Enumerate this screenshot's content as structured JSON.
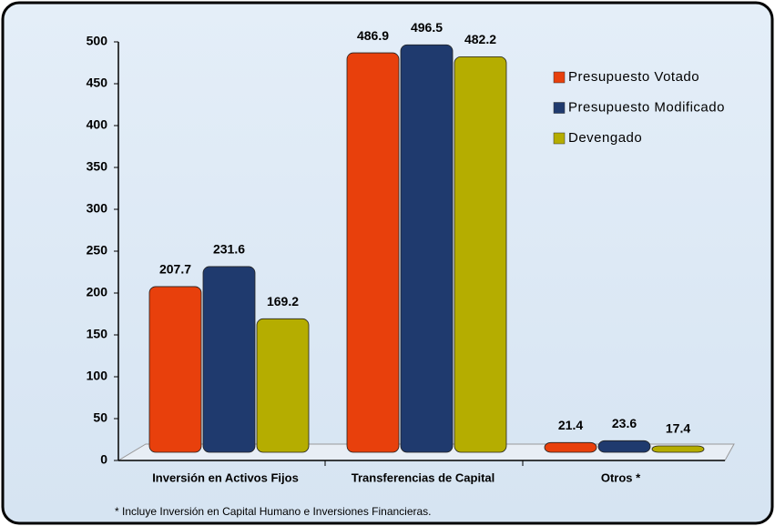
{
  "chart_data": {
    "type": "bar",
    "categories": [
      "Inversión en Activos Fijos",
      "Transferencias de Capital",
      "Otros *"
    ],
    "series": [
      {
        "name": "Presupuesto Votado",
        "color": "#e8400c",
        "values": [
          207.7,
          486.9,
          21.4
        ]
      },
      {
        "name": "Presupuesto Modificado",
        "color": "#1f3a6e",
        "values": [
          231.6,
          496.5,
          23.6
        ]
      },
      {
        "name": "Devengado",
        "color": "#b5ad00",
        "values": [
          169.2,
          482.2,
          17.4
        ]
      }
    ],
    "ylim": [
      0,
      500
    ],
    "yticks": [
      0,
      50,
      100,
      150,
      200,
      250,
      300,
      350,
      400,
      450,
      500
    ],
    "legend": "right",
    "footnote": "* Incluye Inversión en Capital Humano e Inversiones Financieras."
  }
}
